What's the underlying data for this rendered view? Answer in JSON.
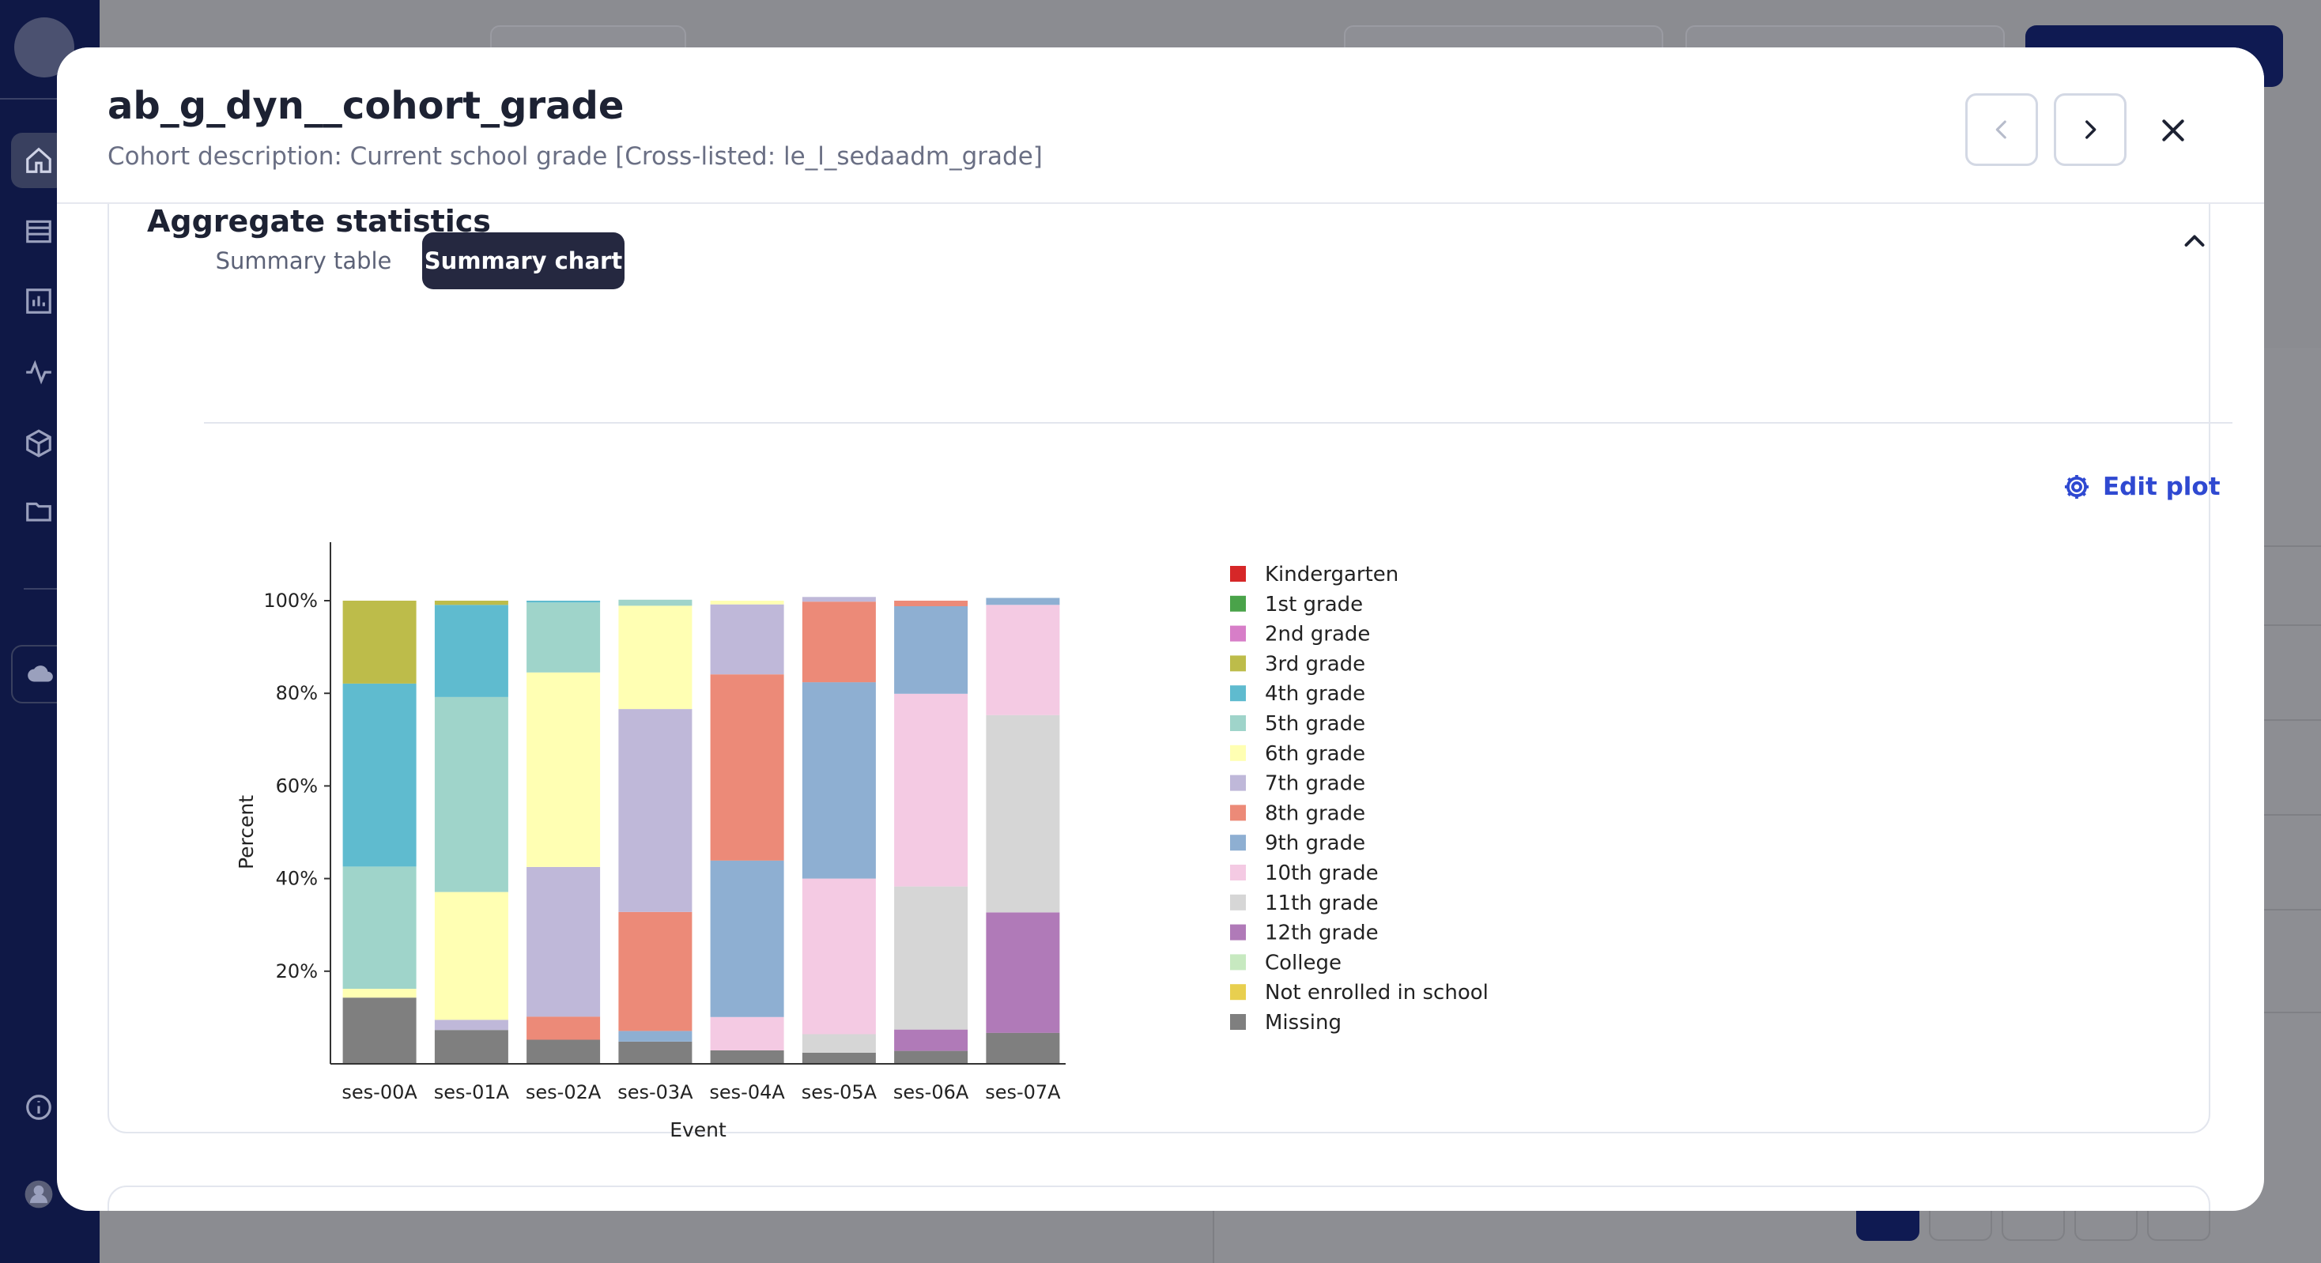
{
  "modal": {
    "title": "ab_g_dyn__cohort_grade",
    "subtitle": "Cohort description: Current school grade [Cross-listed: le_l_sedaadm_grade]"
  },
  "section": {
    "title": "Aggregate statistics",
    "tabs": [
      {
        "label": "Summary table",
        "active": false
      },
      {
        "label": "Summary chart",
        "active": true
      }
    ],
    "edit_plot_label": "Edit plot"
  },
  "icons": {
    "prev": "chevron-left-icon",
    "next": "chevron-right-icon",
    "close": "close-icon",
    "collapse": "chevron-up-icon",
    "edit": "gear-icon"
  },
  "colors": {
    "accent": "#2f49d1",
    "active_tab": "#252840",
    "sidebar": "#0f1846"
  },
  "chart_data": {
    "type": "bar",
    "stacked": true,
    "title": "",
    "xlabel": "Event",
    "ylabel": "Percent",
    "ylim": [
      0,
      100
    ],
    "yticks": [
      "20%",
      "40%",
      "60%",
      "80%",
      "100%"
    ],
    "legend_position": "right",
    "categories": [
      "ses-00A",
      "ses-01A",
      "ses-02A",
      "ses-03A",
      "ses-04A",
      "ses-05A",
      "ses-06A",
      "ses-07A"
    ],
    "series": [
      {
        "name": "Missing",
        "color": "#7f7f7f",
        "values": [
          14.3,
          7.3,
          5.2,
          4.8,
          2.9,
          2.4,
          2.8,
          6.7
        ]
      },
      {
        "name": "Not enrolled in school",
        "color": "#e8cf4f",
        "values": [
          0,
          0,
          0,
          0,
          0,
          0,
          0,
          0
        ]
      },
      {
        "name": "College",
        "color": "#c7e9c0",
        "values": [
          0,
          0,
          0,
          0,
          0,
          0,
          0,
          0
        ]
      },
      {
        "name": "12th grade",
        "color": "#b07ab8",
        "values": [
          0,
          0,
          0,
          0,
          0,
          0,
          4.6,
          26.0
        ]
      },
      {
        "name": "11th grade",
        "color": "#d6d6d6",
        "values": [
          0,
          0,
          0,
          0,
          0,
          4.0,
          30.9,
          42.6
        ]
      },
      {
        "name": "10th grade",
        "color": "#f4cae3",
        "values": [
          0,
          0,
          0,
          0,
          7.2,
          33.6,
          41.6,
          23.8
        ]
      },
      {
        "name": "9th grade",
        "color": "#8eafd2",
        "values": [
          0,
          0,
          0,
          2.3,
          33.8,
          42.4,
          18.9,
          1.5
        ]
      },
      {
        "name": "8th grade",
        "color": "#ec8a78",
        "values": [
          0,
          0,
          5.0,
          25.7,
          40.2,
          17.4,
          1.2,
          0
        ]
      },
      {
        "name": "7th grade",
        "color": "#bfb8d9",
        "values": [
          0,
          2.2,
          32.3,
          43.8,
          15.1,
          1.0,
          0,
          0
        ]
      },
      {
        "name": "6th grade",
        "color": "#ffffb3",
        "values": [
          1.9,
          27.6,
          42.0,
          22.3,
          0.8,
          0,
          0,
          0
        ]
      },
      {
        "name": "5th grade",
        "color": "#9fd4ca",
        "values": [
          26.4,
          42.1,
          15.1,
          1.3,
          0,
          0,
          0,
          0
        ]
      },
      {
        "name": "4th grade",
        "color": "#5fbbcf",
        "values": [
          39.5,
          19.9,
          0.4,
          0,
          0,
          0,
          0,
          0
        ]
      },
      {
        "name": "3rd grade",
        "color": "#bdbc4a",
        "values": [
          17.9,
          0.9,
          0,
          0,
          0,
          0,
          0,
          0
        ]
      },
      {
        "name": "2nd grade",
        "color": "#d77ec8",
        "values": [
          0,
          0,
          0,
          0,
          0,
          0,
          0,
          0
        ]
      },
      {
        "name": "1st grade",
        "color": "#4aa34a",
        "values": [
          0,
          0,
          0,
          0,
          0,
          0,
          0,
          0
        ]
      },
      {
        "name": "Kindergarten",
        "color": "#d62728",
        "values": [
          0,
          0,
          0,
          0,
          0,
          0,
          0,
          0
        ]
      }
    ],
    "legend_order": [
      "Kindergarten",
      "1st grade",
      "2nd grade",
      "3rd grade",
      "4th grade",
      "5th grade",
      "6th grade",
      "7th grade",
      "8th grade",
      "9th grade",
      "10th grade",
      "11th grade",
      "12th grade",
      "College",
      "Not enrolled in school",
      "Missing"
    ]
  }
}
